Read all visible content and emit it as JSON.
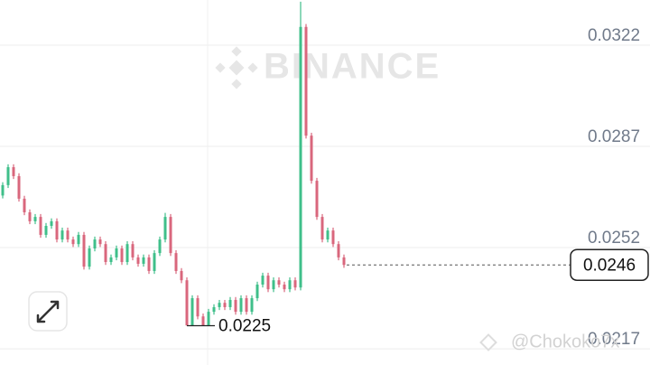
{
  "chart_data": {
    "type": "candlestick",
    "watermark": "BINANCE",
    "attribution": "@Chokoko7x",
    "ylim": [
      0.02114,
      0.03376
    ],
    "yticks": [
      0.0322,
      0.0287,
      0.0252,
      0.0217
    ],
    "grid": true,
    "up_color": "#3fbf8a",
    "down_color": "#d9677d",
    "last_price": 0.0246,
    "low_price": 0.0225,
    "open": [
      0.027,
      0.02736,
      0.02798,
      0.02767,
      0.02689,
      0.02642,
      0.02611,
      0.02626,
      0.02564,
      0.02595,
      0.02611,
      0.02548,
      0.02579,
      0.02548,
      0.02532,
      0.02564,
      0.02454,
      0.02517,
      0.02548,
      0.02532,
      0.0247,
      0.02486,
      0.02517,
      0.0247,
      0.02532,
      0.02486,
      0.02464,
      0.02486,
      0.02439,
      0.02501,
      0.02548,
      0.02626,
      0.02501,
      0.02439,
      0.02407,
      0.02251,
      0.02345,
      0.02282,
      0.02251,
      0.02298,
      0.02314,
      0.02329,
      0.02314,
      0.02339,
      0.02298,
      0.02345,
      0.02298,
      0.02345,
      0.02392,
      0.02423,
      0.02376,
      0.02407,
      0.02392,
      0.02376,
      0.02407,
      0.02382,
      0.03283,
      0.02907,
      0.02751,
      0.02626,
      0.02548,
      0.02579,
      0.02532,
      0.02486
    ],
    "high": [
      0.02746,
      0.02808,
      0.02808,
      0.02777,
      0.02699,
      0.02652,
      0.02636,
      0.02636,
      0.02605,
      0.02621,
      0.02621,
      0.02589,
      0.02589,
      0.02558,
      0.02574,
      0.02574,
      0.02527,
      0.02558,
      0.02558,
      0.02542,
      0.02496,
      0.02527,
      0.02527,
      0.02542,
      0.02542,
      0.02496,
      0.02496,
      0.02496,
      0.02511,
      0.02558,
      0.0264,
      0.02636,
      0.02511,
      0.02449,
      0.02417,
      0.02355,
      0.02355,
      0.02292,
      0.02308,
      0.02324,
      0.02339,
      0.02339,
      0.02349,
      0.02349,
      0.02355,
      0.02355,
      0.02355,
      0.02402,
      0.02433,
      0.02433,
      0.02417,
      0.02417,
      0.02402,
      0.02417,
      0.02417,
      0.0337,
      0.03293,
      0.02917,
      0.02761,
      0.02636,
      0.02589,
      0.02589,
      0.02542,
      0.02496
    ],
    "low": [
      0.0269,
      0.02726,
      0.02757,
      0.02679,
      0.02632,
      0.02601,
      0.02601,
      0.02554,
      0.02554,
      0.02585,
      0.02538,
      0.02538,
      0.02538,
      0.02522,
      0.02522,
      0.02444,
      0.02444,
      0.02507,
      0.02522,
      0.0246,
      0.0246,
      0.02476,
      0.0246,
      0.0246,
      0.02476,
      0.02454,
      0.02454,
      0.02429,
      0.02429,
      0.02491,
      0.02538,
      0.02491,
      0.02429,
      0.02397,
      0.0225,
      0.02251,
      0.02272,
      0.02251,
      0.02251,
      0.02288,
      0.02304,
      0.02304,
      0.02304,
      0.02288,
      0.02288,
      0.02288,
      0.02288,
      0.02335,
      0.02382,
      0.02366,
      0.02366,
      0.02382,
      0.02366,
      0.02366,
      0.02372,
      0.02372,
      0.02897,
      0.02741,
      0.02616,
      0.02538,
      0.02538,
      0.02522,
      0.02476,
      0.0245
    ],
    "close": [
      0.02736,
      0.02798,
      0.02767,
      0.02689,
      0.02642,
      0.02611,
      0.02626,
      0.02564,
      0.02595,
      0.02611,
      0.02548,
      0.02579,
      0.02548,
      0.02532,
      0.02564,
      0.02454,
      0.02517,
      0.02548,
      0.02532,
      0.0247,
      0.02486,
      0.02517,
      0.0247,
      0.02532,
      0.02486,
      0.02464,
      0.02486,
      0.02439,
      0.02501,
      0.02548,
      0.02626,
      0.02501,
      0.02439,
      0.02407,
      0.02251,
      0.02345,
      0.02282,
      0.02251,
      0.02298,
      0.02314,
      0.02329,
      0.02314,
      0.02339,
      0.02298,
      0.02345,
      0.02298,
      0.02345,
      0.02392,
      0.02423,
      0.02376,
      0.02407,
      0.02392,
      0.02376,
      0.02407,
      0.02382,
      0.03283,
      0.02907,
      0.02751,
      0.02626,
      0.02548,
      0.02579,
      0.02532,
      0.02486,
      0.0246
    ]
  }
}
